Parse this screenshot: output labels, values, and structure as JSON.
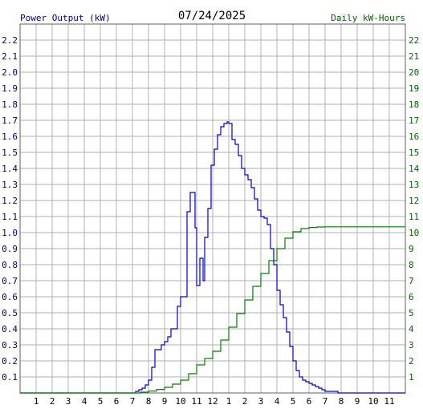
{
  "chart_data": {
    "type": "line",
    "title": "07/24/2025",
    "ylabel": "Power Output (kW)",
    "y2label": "Daily kW-Hours",
    "grid": true,
    "xlim": [
      0,
      24
    ],
    "ylim": [
      0,
      2.3
    ],
    "y2lim": [
      0,
      23
    ],
    "x_tick_labels": [
      "1",
      "2",
      "3",
      "4",
      "5",
      "6",
      "7",
      "8",
      "9",
      "10",
      "11",
      "12",
      "1",
      "2",
      "3",
      "4",
      "5",
      "6",
      "7",
      "8",
      "9",
      "10",
      "11"
    ],
    "y_tick_labels": [
      "0.1",
      "0.2",
      "0.3",
      "0.4",
      "0.5",
      "0.6",
      "0.7",
      "0.8",
      "0.9",
      "1.0",
      "1.1",
      "1.2",
      "1.3",
      "1.4",
      "1.5",
      "1.6",
      "1.7",
      "1.8",
      "1.9",
      "2.0",
      "2.1",
      "2.2"
    ],
    "y2_tick_labels": [
      "1",
      "2",
      "3",
      "4",
      "5",
      "6",
      "7",
      "8",
      "9",
      "10",
      "11",
      "12",
      "13",
      "14",
      "15",
      "16",
      "17",
      "18",
      "19",
      "20",
      "21",
      "22"
    ],
    "colors": {
      "power": "#0000cc",
      "energy": "#008000",
      "grid": "#b0b0b0",
      "axis_left": "#000080",
      "axis_right": "#006400"
    },
    "series": [
      {
        "axis": "left",
        "x": [
          0,
          7.0,
          7.2,
          7.4,
          7.6,
          7.8,
          8.0,
          8.2,
          8.4,
          8.6,
          8.8,
          9.0,
          9.2,
          9.4,
          9.6,
          9.8,
          10.0,
          10.2,
          10.4,
          10.6,
          10.8,
          10.9,
          11.0,
          11.2,
          11.4,
          11.5,
          11.7,
          11.9,
          12.1,
          12.3,
          12.5,
          12.7,
          12.9,
          13.0,
          13.2,
          13.4,
          13.6,
          13.8,
          14.0,
          14.2,
          14.4,
          14.6,
          14.8,
          15.0,
          15.2,
          15.4,
          15.6,
          15.8,
          16.0,
          16.2,
          16.4,
          16.6,
          16.8,
          17.0,
          17.2,
          17.4,
          17.6,
          17.8,
          18.0,
          18.2,
          18.4,
          18.6,
          18.8,
          19.0,
          19.2,
          19.4,
          19.6,
          19.8,
          20.0,
          20.2,
          20.4,
          20.6,
          20.8,
          21.0,
          21.2,
          21.4,
          21.6,
          24
        ],
        "values": [
          0,
          0,
          0.01,
          0.02,
          0.03,
          0.05,
          0.08,
          0.16,
          0.27,
          0.27,
          0.3,
          0.32,
          0.35,
          0.4,
          0.4,
          0.54,
          0.6,
          0.6,
          1.13,
          1.25,
          1.25,
          1.03,
          0.67,
          0.84,
          0.7,
          0.97,
          1.15,
          1.42,
          1.52,
          1.61,
          1.66,
          1.68,
          1.69,
          1.68,
          1.58,
          1.55,
          1.48,
          1.4,
          1.36,
          1.33,
          1.28,
          1.21,
          1.14,
          1.1,
          1.09,
          1.05,
          0.9,
          0.8,
          0.64,
          0.55,
          0.47,
          0.38,
          0.29,
          0.2,
          0.14,
          0.1,
          0.08,
          0.07,
          0.06,
          0.05,
          0.04,
          0.03,
          0.02,
          0.01,
          0.01,
          0.01,
          0.01,
          0,
          0,
          0,
          0,
          0,
          0,
          0,
          0,
          0,
          0,
          0
        ]
      },
      {
        "axis": "right",
        "x": [
          0,
          7.0,
          7.5,
          8.0,
          8.5,
          9.0,
          9.5,
          10.0,
          10.5,
          11.0,
          11.5,
          12.0,
          12.5,
          13.0,
          13.5,
          14.0,
          14.5,
          15.0,
          15.5,
          16.0,
          16.5,
          17.0,
          17.5,
          18.0,
          18.5,
          19.0,
          24
        ],
        "values": [
          0,
          0,
          0.05,
          0.12,
          0.22,
          0.35,
          0.55,
          0.8,
          1.2,
          1.75,
          2.15,
          2.6,
          3.3,
          4.1,
          4.95,
          5.8,
          6.65,
          7.45,
          8.25,
          9.0,
          9.65,
          10.05,
          10.25,
          10.32,
          10.35,
          10.36,
          10.36
        ]
      }
    ]
  }
}
